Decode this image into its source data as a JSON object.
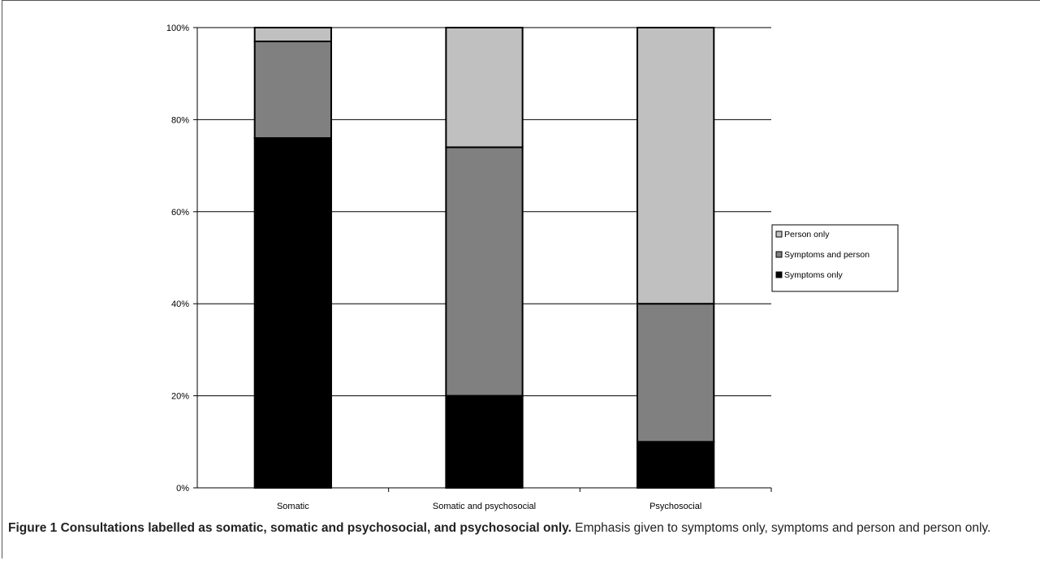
{
  "chart_data": {
    "type": "bar",
    "stacked": true,
    "categories": [
      "Somatic",
      "Somatic and psychosocial",
      "Psychosocial"
    ],
    "series": [
      {
        "name": "Symptoms only",
        "values": [
          76,
          20,
          10
        ],
        "color": "#000000"
      },
      {
        "name": "Symptoms and person",
        "values": [
          21,
          54,
          30
        ],
        "color": "#808080"
      },
      {
        "name": "Person only",
        "values": [
          3,
          26,
          60
        ],
        "color": "#c0c0c0"
      }
    ],
    "y_ticks": [
      "0%",
      "20%",
      "40%",
      "60%",
      "80%",
      "100%"
    ],
    "ylim": [
      0,
      100
    ],
    "grid": true,
    "legend_position": "right",
    "legend_order": [
      "Person only",
      "Symptoms and person",
      "Symptoms only"
    ]
  },
  "caption": {
    "label": "Figure 1 Consultations labelled as somatic, somatic and psychosocial, and psychosocial only.",
    "text": "Emphasis given to symptoms only, symptoms and person and person only."
  }
}
